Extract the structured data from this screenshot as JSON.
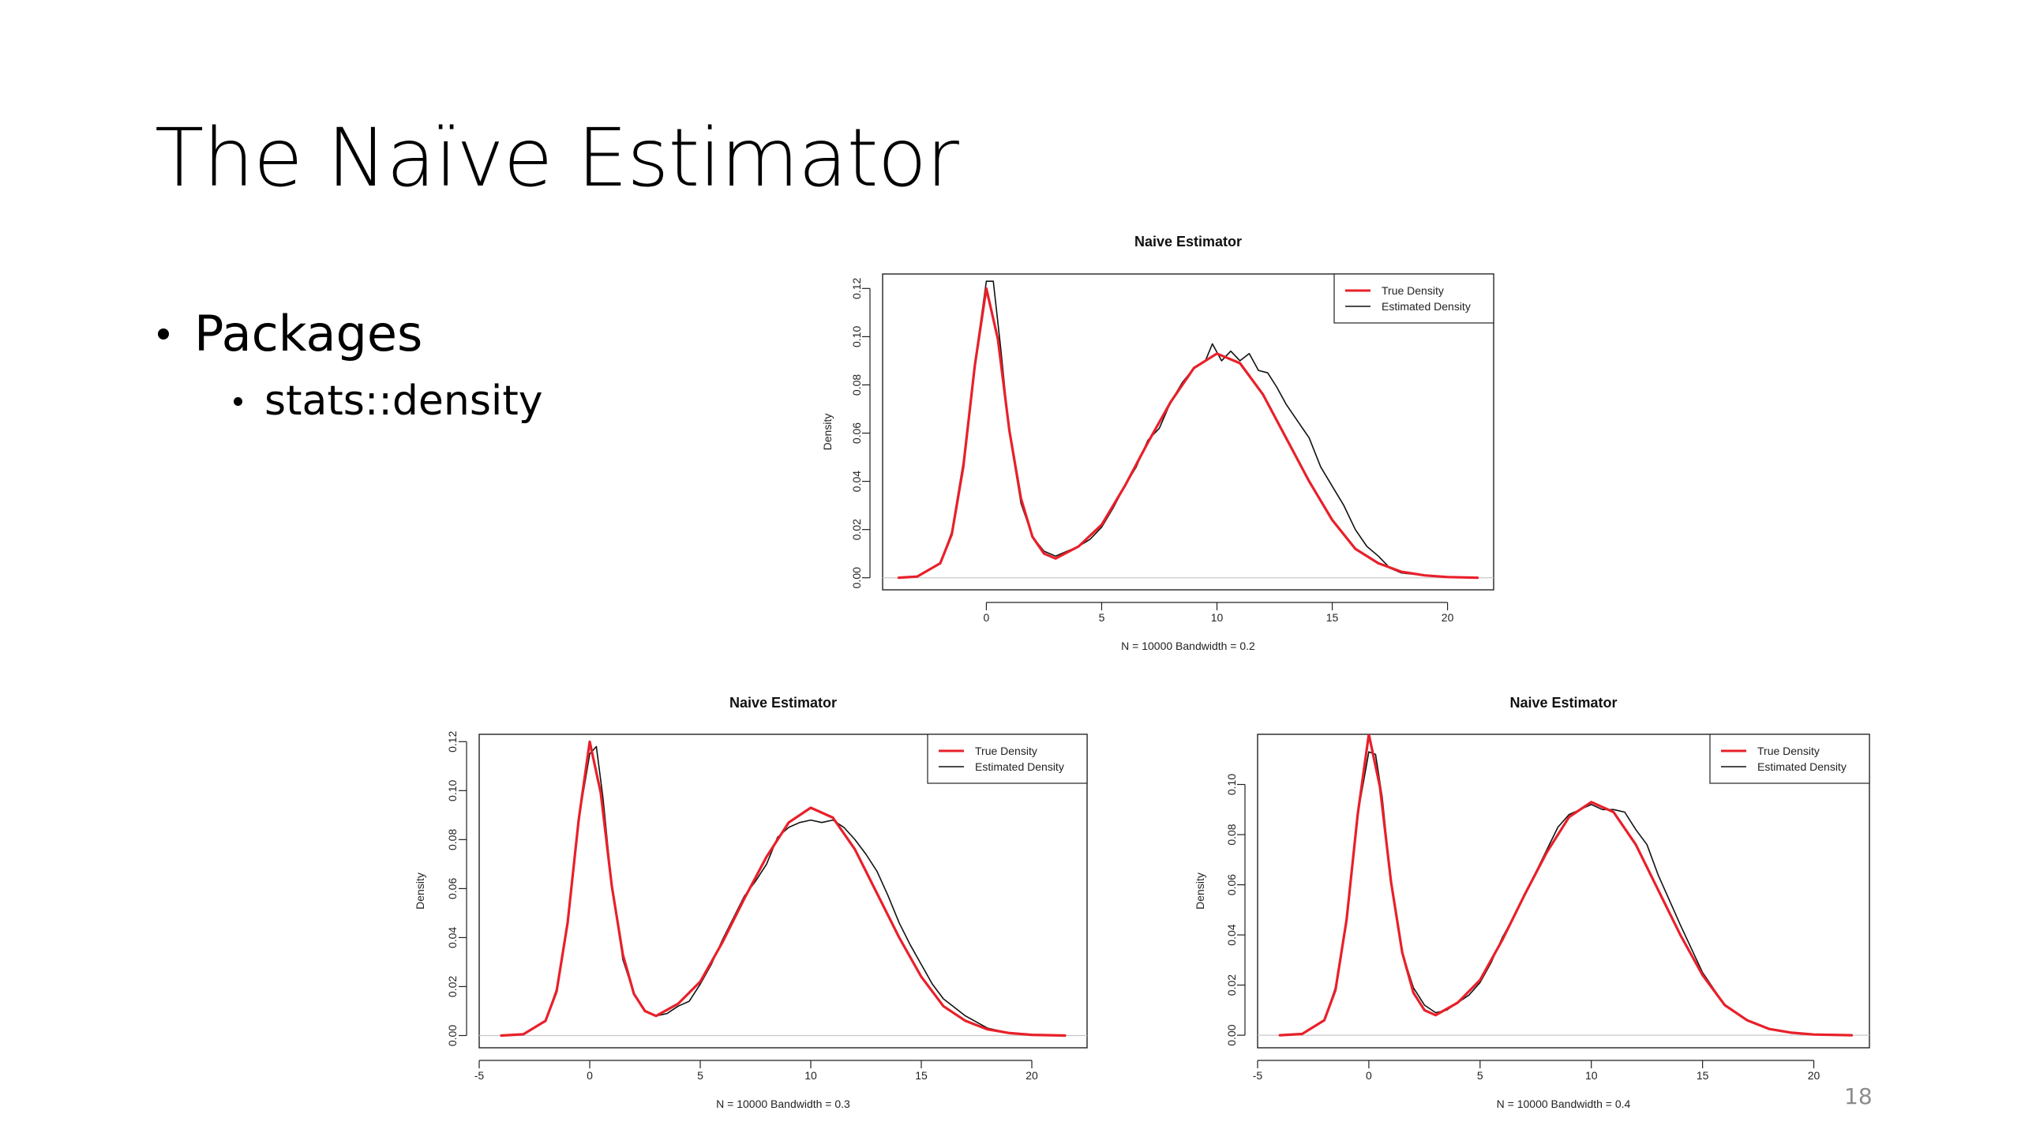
{
  "slide": {
    "title": "The Naïve Estimator",
    "bullets": [
      {
        "label": "Packages",
        "children": [
          "stats::density"
        ]
      }
    ],
    "page_number": "18"
  },
  "colors": {
    "true_density": "#e8202a",
    "estimated_density": "#111111",
    "zero_line": "#c8c8c8",
    "axis": "#222222"
  },
  "chart_data": [
    {
      "type": "line",
      "title": "Naive Estimator",
      "xlabel": "N = 10000   Bandwidth = 0.2",
      "ylabel": "Density",
      "xlim": [
        -4.5,
        22
      ],
      "ylim": [
        -0.005,
        0.126
      ],
      "xticks": [
        0,
        5,
        10,
        15,
        20
      ],
      "yticks": [
        0.0,
        0.02,
        0.04,
        0.06,
        0.08,
        0.1,
        0.12
      ],
      "ytick_labels": [
        "0.00",
        "0.02",
        "0.04",
        "0.06",
        "0.08",
        "0.10",
        "0.12"
      ],
      "legend": {
        "placement": "top-right",
        "entries": [
          "True Density",
          "Estimated Density"
        ]
      },
      "true_density": {
        "x": [
          -3.8,
          -3,
          -2,
          -1.5,
          -1,
          -0.5,
          0,
          0.5,
          1,
          1.5,
          2,
          2.5,
          3,
          4,
          5,
          6,
          7,
          8,
          9,
          10,
          11,
          12,
          13,
          14,
          15,
          16,
          17,
          18,
          19,
          20,
          21.3
        ],
        "y": [
          0.0,
          0.0005,
          0.006,
          0.018,
          0.046,
          0.088,
          0.12,
          0.099,
          0.061,
          0.033,
          0.017,
          0.01,
          0.008,
          0.013,
          0.022,
          0.038,
          0.056,
          0.073,
          0.087,
          0.093,
          0.089,
          0.076,
          0.058,
          0.04,
          0.024,
          0.012,
          0.006,
          0.0025,
          0.001,
          0.0003,
          0.0
        ]
      },
      "estimated_density": {
        "x": [
          -3.8,
          -3,
          -2,
          -1.5,
          -1,
          -0.5,
          0,
          0.3,
          0.6,
          1,
          1.5,
          2,
          2.5,
          3,
          3.5,
          4,
          4.5,
          5,
          5.5,
          6,
          6.5,
          7,
          7.5,
          8,
          8.5,
          9,
          9.5,
          9.8,
          10.2,
          10.6,
          11,
          11.4,
          11.8,
          12.2,
          12.6,
          13,
          13.5,
          14,
          14.5,
          15,
          15.5,
          16,
          16.5,
          17,
          17.5,
          18,
          19,
          20,
          21.3
        ],
        "y": [
          0.0,
          0.0005,
          0.006,
          0.019,
          0.048,
          0.089,
          0.123,
          0.123,
          0.097,
          0.06,
          0.031,
          0.017,
          0.011,
          0.009,
          0.011,
          0.013,
          0.016,
          0.021,
          0.029,
          0.038,
          0.046,
          0.057,
          0.062,
          0.073,
          0.081,
          0.087,
          0.09,
          0.097,
          0.09,
          0.094,
          0.09,
          0.093,
          0.086,
          0.085,
          0.079,
          0.072,
          0.065,
          0.058,
          0.046,
          0.038,
          0.03,
          0.02,
          0.013,
          0.009,
          0.004,
          0.002,
          0.001,
          0.0003,
          0.0
        ]
      }
    },
    {
      "type": "line",
      "title": "Naive Estimator",
      "xlabel": "N = 10000   Bandwidth = 0.3",
      "ylabel": "Density",
      "xlim": [
        -5,
        22.5
      ],
      "ylim": [
        -0.005,
        0.123
      ],
      "xticks": [
        -5,
        0,
        5,
        10,
        15,
        20
      ],
      "yticks": [
        0.0,
        0.02,
        0.04,
        0.06,
        0.08,
        0.1,
        0.12
      ],
      "ytick_labels": [
        "0.00",
        "0.02",
        "0.04",
        "0.06",
        "0.08",
        "0.10",
        "0.12"
      ],
      "legend": {
        "placement": "top-right",
        "entries": [
          "True Density",
          "Estimated Density"
        ]
      },
      "true_density": {
        "x": [
          -4,
          -3,
          -2,
          -1.5,
          -1,
          -0.5,
          0,
          0.5,
          1,
          1.5,
          2,
          2.5,
          3,
          4,
          5,
          6,
          7,
          8,
          9,
          10,
          11,
          12,
          13,
          14,
          15,
          16,
          17,
          18,
          19,
          20,
          21.5
        ],
        "y": [
          0.0,
          0.0005,
          0.006,
          0.018,
          0.046,
          0.088,
          0.12,
          0.099,
          0.061,
          0.033,
          0.017,
          0.01,
          0.008,
          0.013,
          0.022,
          0.038,
          0.056,
          0.073,
          0.087,
          0.093,
          0.089,
          0.076,
          0.058,
          0.04,
          0.024,
          0.012,
          0.006,
          0.0025,
          0.001,
          0.0003,
          0.0
        ]
      },
      "estimated_density": {
        "x": [
          -4,
          -3,
          -2,
          -1.5,
          -1,
          -0.5,
          0,
          0.3,
          0.6,
          1,
          1.5,
          2,
          2.5,
          3,
          3.5,
          4,
          4.5,
          5,
          5.5,
          6,
          6.5,
          7,
          7.5,
          8,
          8.5,
          9,
          9.5,
          10,
          10.5,
          11,
          11.5,
          12,
          12.5,
          13,
          13.5,
          14,
          14.5,
          15,
          15.5,
          16,
          17,
          18,
          19,
          20,
          21.5
        ],
        "y": [
          0.0,
          0.0005,
          0.006,
          0.019,
          0.047,
          0.088,
          0.115,
          0.118,
          0.097,
          0.061,
          0.031,
          0.017,
          0.01,
          0.008,
          0.009,
          0.012,
          0.014,
          0.021,
          0.029,
          0.039,
          0.048,
          0.057,
          0.063,
          0.07,
          0.081,
          0.085,
          0.087,
          0.088,
          0.087,
          0.088,
          0.085,
          0.08,
          0.074,
          0.067,
          0.057,
          0.046,
          0.037,
          0.029,
          0.021,
          0.015,
          0.008,
          0.003,
          0.001,
          0.0003,
          0.0
        ]
      }
    },
    {
      "type": "line",
      "title": "Naive Estimator",
      "xlabel": "N = 10000   Bandwidth = 0.4",
      "ylabel": "Density",
      "xlim": [
        -5,
        22.5
      ],
      "ylim": [
        -0.005,
        0.12
      ],
      "xticks": [
        -5,
        0,
        5,
        10,
        15,
        20
      ],
      "yticks": [
        0.0,
        0.02,
        0.04,
        0.06,
        0.08,
        0.1
      ],
      "ytick_labels": [
        "0.00",
        "0.02",
        "0.04",
        "0.06",
        "0.08",
        "0.10"
      ],
      "legend": {
        "placement": "top-right",
        "entries": [
          "True Density",
          "Estimated Density"
        ]
      },
      "true_density": {
        "x": [
          -4,
          -3,
          -2,
          -1.5,
          -1,
          -0.5,
          0,
          0.5,
          1,
          1.5,
          2,
          2.5,
          3,
          4,
          5,
          6,
          7,
          8,
          9,
          10,
          11,
          12,
          13,
          14,
          15,
          16,
          17,
          18,
          19,
          20,
          21.7
        ],
        "y": [
          0.0,
          0.0005,
          0.006,
          0.018,
          0.046,
          0.088,
          0.12,
          0.099,
          0.061,
          0.033,
          0.017,
          0.01,
          0.008,
          0.013,
          0.022,
          0.038,
          0.056,
          0.073,
          0.087,
          0.093,
          0.089,
          0.076,
          0.058,
          0.04,
          0.024,
          0.012,
          0.006,
          0.0025,
          0.001,
          0.0003,
          0.0
        ]
      },
      "estimated_density": {
        "x": [
          -4,
          -3,
          -2,
          -1.5,
          -1,
          -0.5,
          0,
          0.3,
          0.6,
          1,
          1.5,
          2,
          2.5,
          3,
          3.5,
          4,
          4.5,
          5,
          5.5,
          6,
          6.5,
          7,
          7.5,
          8,
          8.5,
          9,
          9.5,
          10,
          10.5,
          11,
          11.5,
          12,
          12.5,
          13,
          13.5,
          14,
          15,
          16,
          17,
          18,
          19,
          20,
          21.7
        ],
        "y": [
          0.0,
          0.0005,
          0.006,
          0.019,
          0.047,
          0.088,
          0.113,
          0.112,
          0.095,
          0.061,
          0.033,
          0.019,
          0.012,
          0.009,
          0.01,
          0.013,
          0.016,
          0.021,
          0.029,
          0.039,
          0.047,
          0.056,
          0.065,
          0.074,
          0.083,
          0.088,
          0.09,
          0.092,
          0.09,
          0.09,
          0.089,
          0.082,
          0.076,
          0.064,
          0.054,
          0.044,
          0.025,
          0.012,
          0.006,
          0.0025,
          0.001,
          0.0003,
          0.0
        ]
      }
    }
  ]
}
